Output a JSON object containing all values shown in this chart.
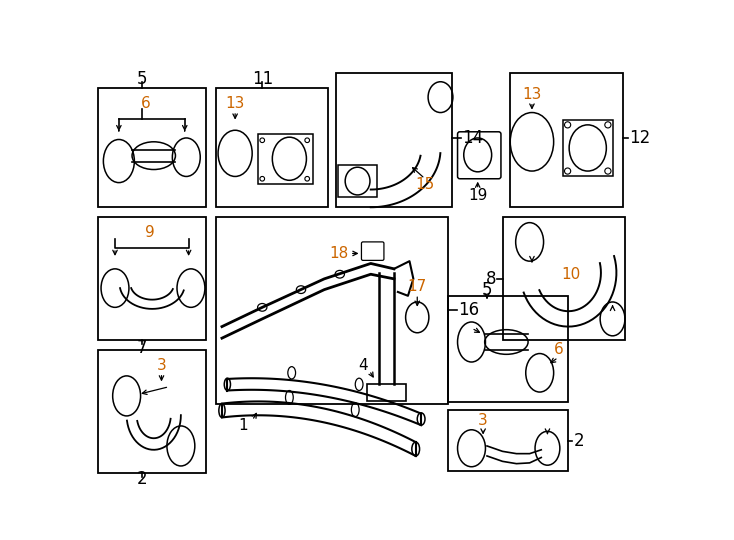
{
  "bg": "#ffffff",
  "lc": "#000000",
  "orange": "#cc6600",
  "black": "#000000",
  "fig_w": 7.34,
  "fig_h": 5.4,
  "dpi": 100
}
